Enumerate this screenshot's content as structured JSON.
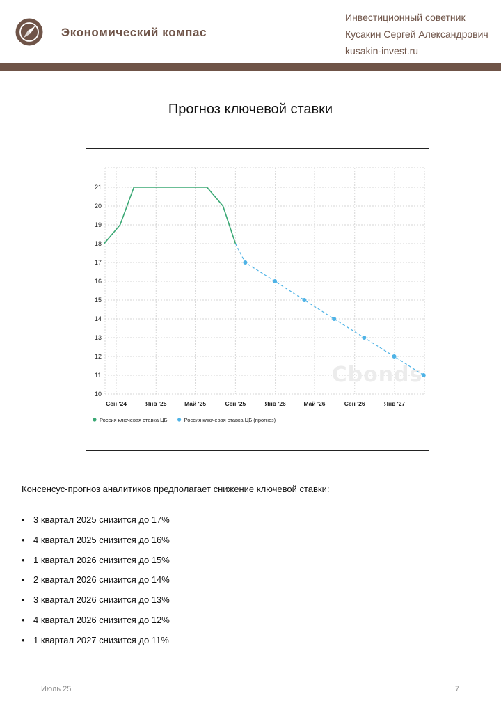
{
  "header": {
    "brand": "Экономический компас",
    "logo_icon": "compass-icon",
    "advisor_role": "Инвестиционный советник",
    "advisor_name": "Кусакин Сергей Александрович",
    "advisor_site": "kusakin-invest.ru",
    "brand_color": "#6f5448"
  },
  "title": "Прогноз ключевой ставки",
  "chart_data": {
    "type": "line",
    "x_ticks": [
      "Сен '24",
      "Янв '25",
      "Май '25",
      "Сен '25",
      "Янв '26",
      "Май '26",
      "Сен '26",
      "Янв '27"
    ],
    "x_tick_dates": [
      "2024-09-01",
      "2025-01-01",
      "2025-05-01",
      "2025-09-01",
      "2026-01-01",
      "2026-05-01",
      "2026-09-01",
      "2027-01-01"
    ],
    "ylim": [
      10,
      21
    ],
    "y_ticks": [
      10,
      11,
      12,
      13,
      14,
      15,
      16,
      17,
      18,
      19,
      20,
      21
    ],
    "grid": true,
    "legend_position": "bottom-left",
    "watermark": "Cbonds",
    "series": [
      {
        "name": "Россия ключевая ставка ЦБ",
        "color": "#3aa874",
        "style": "solid",
        "markers": false,
        "points": [
          {
            "x": "2024-07-26",
            "y": 18
          },
          {
            "x": "2024-09-13",
            "y": 19
          },
          {
            "x": "2024-10-25",
            "y": 21
          },
          {
            "x": "2025-06-06",
            "y": 21
          },
          {
            "x": "2025-07-25",
            "y": 20
          },
          {
            "x": "2025-09-01",
            "y": 18
          }
        ]
      },
      {
        "name": "Россия ключевая ставка ЦБ (прогноз)",
        "color": "#4fb3e6",
        "style": "dashed",
        "markers": true,
        "points": [
          {
            "x": "2025-09-01",
            "y": 18
          },
          {
            "x": "2025-10-01",
            "y": 17
          },
          {
            "x": "2025-12-31",
            "y": 16
          },
          {
            "x": "2026-03-31",
            "y": 15
          },
          {
            "x": "2026-06-30",
            "y": 14
          },
          {
            "x": "2026-09-30",
            "y": 13
          },
          {
            "x": "2026-12-31",
            "y": 12
          },
          {
            "x": "2027-03-31",
            "y": 11
          }
        ]
      }
    ]
  },
  "intro": "Консенсус-прогноз аналитиков предполагает снижение  ключевой ставки:",
  "forecast_list": [
    "3 квартал 2025 снизится до 17%",
    "4 квартал 2025 снизится до 16%",
    "1 квартал 2026 снизится до 15%",
    "2 квартал 2026 снизится до 14%",
    "3 квартал 2026 снизится до 13%",
    "4 квартал 2026 снизится до 12%",
    "1 квартал 2027 снизится до 11%"
  ],
  "bullet": "•",
  "footer": {
    "date": "Июль 25",
    "page": "7"
  }
}
